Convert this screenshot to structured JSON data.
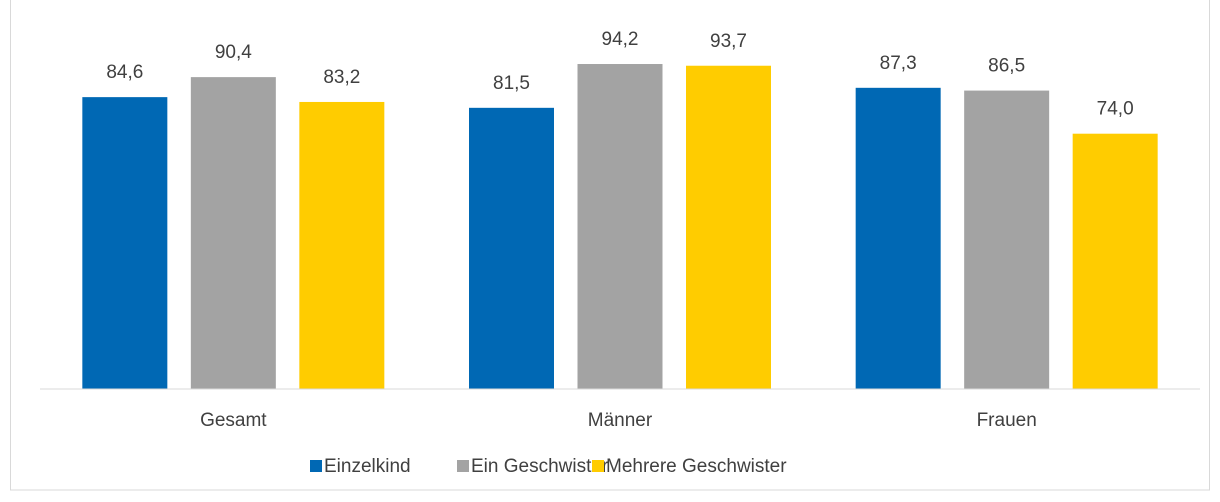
{
  "chart_data": {
    "type": "bar",
    "categories": [
      "Gesamt",
      "Männer",
      "Frauen"
    ],
    "series": [
      {
        "name": "Einzelkind",
        "color": "#0068b4",
        "values": [
          84.6,
          81.5,
          87.3
        ],
        "value_labels": [
          "84,6",
          "81,5",
          "87,3"
        ]
      },
      {
        "name": "Ein Geschwister",
        "color": "#a3a3a3",
        "values": [
          90.4,
          94.2,
          86.5
        ],
        "value_labels": [
          "90,4",
          "94,2",
          "86,5"
        ]
      },
      {
        "name": "Mehrere Geschwister",
        "color": "#ffcc00",
        "values": [
          83.2,
          93.7,
          74.0
        ],
        "value_labels": [
          "83,2",
          "93,7",
          "74,0"
        ]
      }
    ],
    "ylim": [
      0,
      100
    ],
    "legend": "bottom"
  }
}
